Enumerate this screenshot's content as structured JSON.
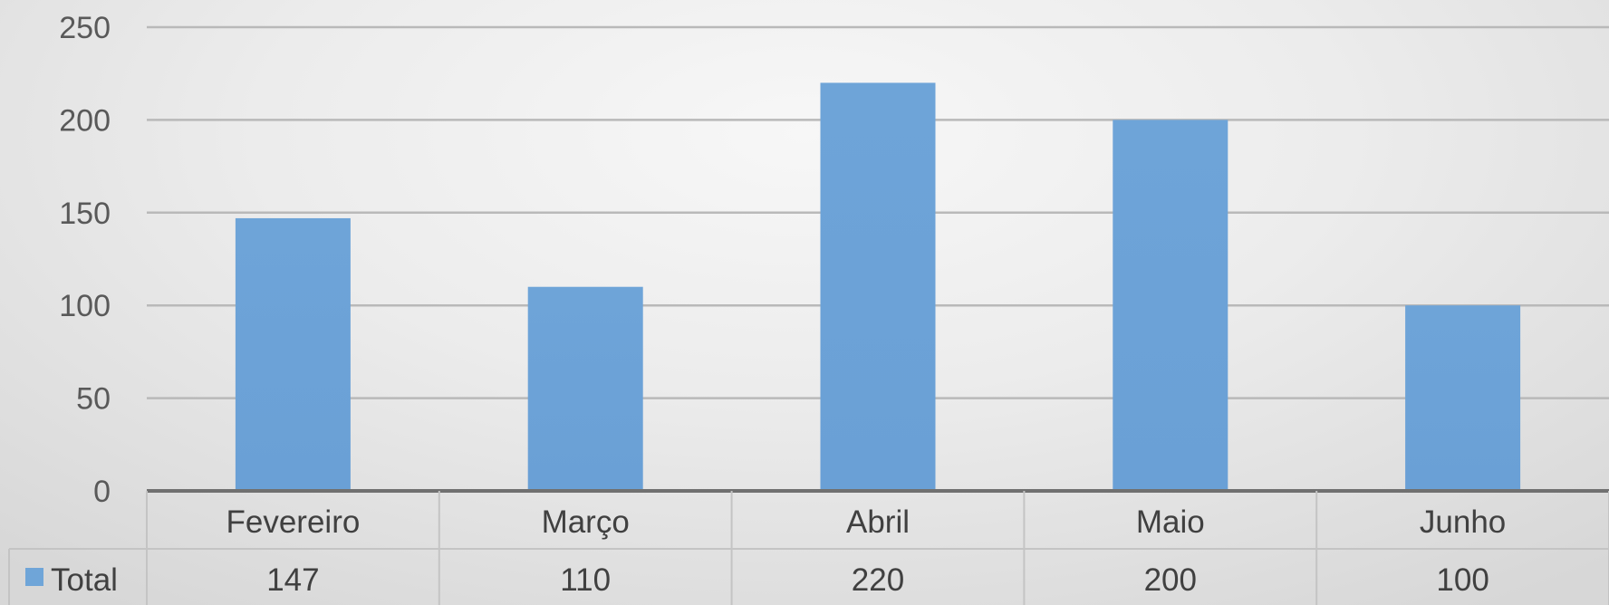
{
  "chart_data": {
    "type": "bar",
    "title": "",
    "xlabel": "",
    "ylabel": "",
    "categories": [
      "Fevereiro",
      "Março",
      "Abril",
      "Maio",
      "Junho"
    ],
    "series": [
      {
        "name": "Total",
        "values": [
          147,
          110,
          220,
          200,
          100
        ],
        "color": "#6fa5d8"
      }
    ],
    "ylim": [
      0,
      250
    ],
    "yticks": [
      "0",
      "50",
      "100",
      "150",
      "200",
      "250"
    ],
    "value_labels": [
      "147",
      "110",
      "220",
      "200",
      "100"
    ],
    "grid": true,
    "legend": "data-table",
    "data_table": true
  }
}
